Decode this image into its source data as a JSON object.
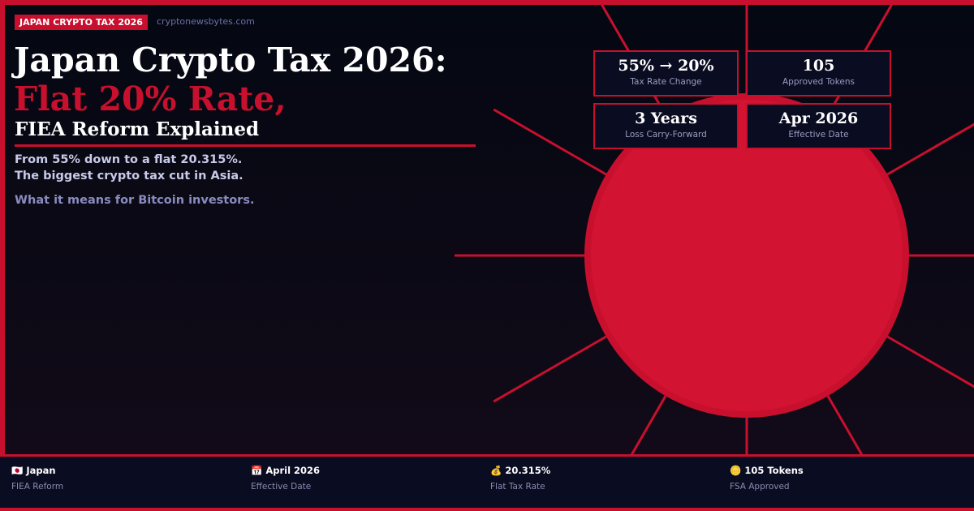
{
  "colors": {
    "accent": "#c8102e",
    "sun": "#d21432",
    "background": "#050813",
    "panel": "#0a0c22"
  },
  "header": {
    "badge": "JAPAN CRYPTO TAX 2026",
    "site": "cryptonewsbytes.com"
  },
  "headline": {
    "line1": "Japan Crypto Tax 2026:",
    "line2": "Flat 20% Rate,",
    "line3": "FIEA Reform Explained"
  },
  "body": {
    "line1": "From 55% down to a flat 20.315%.",
    "line2": "The biggest crypto tax cut in Asia.",
    "line3": "What it means for Bitcoin investors."
  },
  "stats": [
    {
      "value": "55% → 20%",
      "label": "Tax Rate Change"
    },
    {
      "value": "105",
      "label": "Approved Tokens"
    },
    {
      "value": "3 Years",
      "label": "Loss Carry-Forward"
    },
    {
      "value": "Apr 2026",
      "label": "Effective Date"
    }
  ],
  "footer": [
    {
      "icon": "🇯🇵",
      "value": "Japan",
      "label": "FIEA Reform"
    },
    {
      "icon": "📅",
      "value": "April 2026",
      "label": "Effective Date"
    },
    {
      "icon": "💰",
      "value": "20.315%",
      "label": "Flat Tax Rate"
    },
    {
      "icon": "🪙",
      "value": "105 Tokens",
      "label": "FSA Approved"
    }
  ]
}
